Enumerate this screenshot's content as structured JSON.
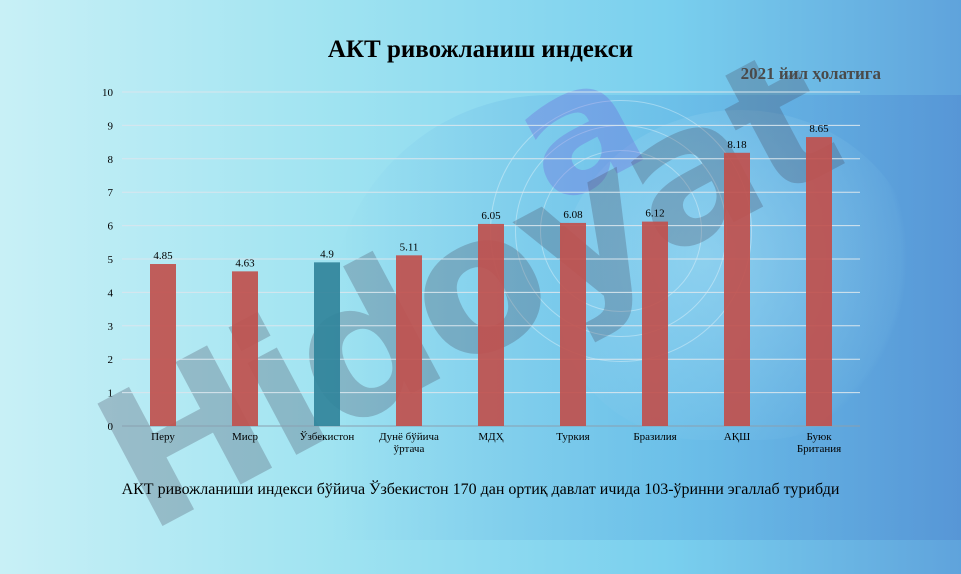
{
  "slide": {
    "title": "АКТ ривожланиш индекси",
    "subtitle": "2021 йил ҳолатига",
    "caption": "АКТ ривожланиши индекси бўйича Ўзбекистон 170 дан ортиқ давлат ичида 103-ўринни эгаллаб турибди",
    "watermark_text": "Hidoyat"
  },
  "chart_data": {
    "type": "bar",
    "categories": [
      "Перу",
      "Миср",
      "Ўзбекистон",
      "Дунё бўйича ўртача",
      "МДҲ",
      "Туркия",
      "Бразилия",
      "АҚШ",
      "Буюк Британия"
    ],
    "values": [
      4.85,
      4.63,
      4.9,
      5.11,
      6.05,
      6.08,
      6.12,
      8.18,
      8.65
    ],
    "value_labels": [
      "4.85",
      "4.63",
      "4.9",
      "5.11",
      "6.05",
      "6.08",
      "6.12",
      "8.18",
      "8.65"
    ],
    "ylim": [
      0,
      10
    ],
    "y_ticks": [
      0,
      1,
      2,
      3,
      4,
      5,
      6,
      7,
      8,
      9,
      10
    ],
    "grid": true,
    "colors": {
      "default": "#c0504d",
      "highlight": "#31849b",
      "grid": "#d9e6ee",
      "axis": "#8aa0b0"
    },
    "highlight_category": "Ўзбекистон"
  }
}
